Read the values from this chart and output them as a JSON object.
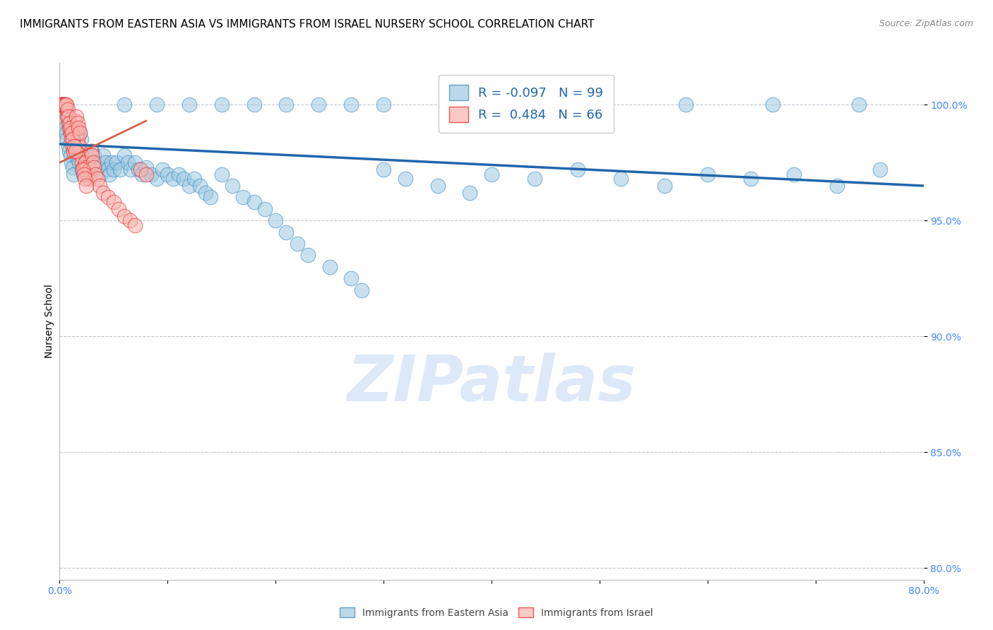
{
  "title": "IMMIGRANTS FROM EASTERN ASIA VS IMMIGRANTS FROM ISRAEL NURSERY SCHOOL CORRELATION CHART",
  "source_text": "Source: ZipAtlas.com",
  "ylabel": "Nursery School",
  "xlim": [
    0.0,
    80.0
  ],
  "ylim": [
    79.5,
    101.8
  ],
  "yticks": [
    80.0,
    85.0,
    90.0,
    95.0,
    100.0
  ],
  "ytick_labels": [
    "80.0%",
    "85.0%",
    "90.0%",
    "95.0%",
    "100.0%"
  ],
  "xtick_positions": [
    0,
    10,
    20,
    30,
    40,
    50,
    60,
    70,
    80
  ],
  "xtick_labels": [
    "0.0%",
    "",
    "",
    "",
    "",
    "",
    "",
    "",
    "80.0%"
  ],
  "legend_line1": "R = -0.097   N = 99",
  "legend_line2": "R =  0.484   N = 66",
  "legend_label1": "Immigrants from Eastern Asia",
  "legend_label2": "Immigrants from Israel",
  "blue_color": "#9ecae1",
  "pink_color": "#fbb4ae",
  "blue_edge_color": "#3182bd",
  "pink_edge_color": "#e31a1c",
  "blue_line_color": "#2166ac",
  "pink_line_color": "#d6604d",
  "watermark": "ZIPatlas",
  "blue_scatter_x": [
    0.2,
    0.3,
    0.4,
    0.5,
    0.6,
    0.7,
    0.8,
    0.9,
    1.0,
    1.1,
    1.2,
    1.3,
    1.5,
    1.6,
    1.7,
    1.8,
    1.9,
    2.0,
    2.1,
    2.2,
    2.3,
    2.4,
    2.5,
    2.6,
    2.7,
    2.8,
    3.0,
    3.2,
    3.4,
    3.6,
    3.8,
    4.0,
    4.2,
    4.4,
    4.6,
    4.8,
    5.0,
    5.3,
    5.6,
    6.0,
    6.3,
    6.6,
    7.0,
    7.3,
    7.6,
    8.0,
    8.5,
    9.0,
    9.5,
    10.0,
    10.5,
    11.0,
    11.5,
    12.0,
    12.5,
    13.0,
    13.5,
    14.0,
    15.0,
    16.0,
    17.0,
    18.0,
    19.0,
    20.0,
    21.0,
    22.0,
    23.0,
    25.0,
    27.0,
    28.0,
    30.0,
    32.0,
    35.0,
    38.0,
    40.0,
    44.0,
    48.0,
    52.0,
    56.0,
    60.0,
    64.0,
    68.0,
    72.0,
    76.0,
    6.0,
    9.0,
    12.0,
    15.0,
    18.0,
    21.0,
    24.0,
    27.0,
    30.0,
    36.0,
    42.0,
    50.0,
    58.0,
    66.0,
    74.0
  ],
  "blue_scatter_y": [
    99.8,
    99.5,
    99.3,
    99.0,
    98.8,
    98.5,
    98.2,
    98.0,
    97.8,
    97.5,
    97.3,
    97.0,
    98.3,
    98.0,
    97.7,
    97.5,
    98.8,
    98.5,
    97.2,
    97.0,
    98.0,
    97.5,
    97.2,
    97.8,
    97.5,
    97.2,
    98.0,
    97.8,
    97.5,
    97.3,
    97.0,
    97.8,
    97.5,
    97.2,
    97.0,
    97.5,
    97.2,
    97.5,
    97.2,
    97.8,
    97.5,
    97.2,
    97.5,
    97.2,
    97.0,
    97.3,
    97.0,
    96.8,
    97.2,
    97.0,
    96.8,
    97.0,
    96.8,
    96.5,
    96.8,
    96.5,
    96.2,
    96.0,
    97.0,
    96.5,
    96.0,
    95.8,
    95.5,
    95.0,
    94.5,
    94.0,
    93.5,
    93.0,
    92.5,
    92.0,
    97.2,
    96.8,
    96.5,
    96.2,
    97.0,
    96.8,
    97.2,
    96.8,
    96.5,
    97.0,
    96.8,
    97.0,
    96.5,
    97.2,
    100.0,
    100.0,
    100.0,
    100.0,
    100.0,
    100.0,
    100.0,
    100.0,
    100.0,
    100.0,
    100.0,
    100.0,
    100.0,
    100.0,
    100.0
  ],
  "pink_scatter_x": [
    0.1,
    0.2,
    0.3,
    0.4,
    0.5,
    0.6,
    0.7,
    0.8,
    0.9,
    1.0,
    1.1,
    1.2,
    1.3,
    1.4,
    1.5,
    1.6,
    1.7,
    1.8,
    1.9,
    2.0,
    2.1,
    2.2,
    2.3,
    2.4,
    2.5,
    2.6,
    2.7,
    2.8,
    2.9,
    3.0,
    3.1,
    3.2,
    3.3,
    3.5,
    3.7,
    4.0,
    4.5,
    5.0,
    5.5,
    6.0,
    6.5,
    7.0,
    7.5,
    8.0,
    0.15,
    0.25,
    0.35,
    0.45,
    0.55,
    0.65,
    0.75,
    0.85,
    0.95,
    1.05,
    1.15,
    1.25,
    1.35,
    1.45,
    1.55,
    1.65,
    1.75,
    1.85,
    2.15,
    2.25,
    2.35,
    2.45
  ],
  "pink_scatter_y": [
    100.0,
    100.0,
    100.0,
    100.0,
    100.0,
    99.8,
    99.5,
    99.2,
    99.0,
    98.8,
    98.5,
    98.2,
    98.0,
    99.3,
    99.0,
    98.8,
    98.5,
    98.2,
    98.0,
    97.8,
    97.5,
    97.3,
    97.2,
    97.5,
    97.3,
    97.0,
    96.8,
    97.2,
    98.0,
    97.8,
    97.5,
    97.3,
    97.0,
    96.8,
    96.5,
    96.2,
    96.0,
    95.8,
    95.5,
    95.2,
    95.0,
    94.8,
    97.2,
    97.0,
    100.0,
    100.0,
    100.0,
    100.0,
    100.0,
    100.0,
    99.8,
    99.5,
    99.2,
    99.0,
    98.8,
    98.5,
    98.2,
    98.0,
    99.5,
    99.2,
    99.0,
    98.8,
    97.2,
    97.0,
    96.8,
    96.5
  ],
  "blue_trendline_x": [
    0.0,
    80.0
  ],
  "blue_trendline_y": [
    98.3,
    96.5
  ],
  "pink_trendline_x": [
    0.0,
    8.0
  ],
  "pink_trendline_y": [
    97.5,
    99.3
  ],
  "title_fontsize": 11,
  "tick_fontsize": 10,
  "axis_label_fontsize": 10,
  "legend_fontsize": 13,
  "watermark_fontsize": 65,
  "background_color": "#ffffff",
  "grid_color": "#c0c0cc",
  "ytick_color": "#4488ff",
  "xtick_color": "#4488ff"
}
